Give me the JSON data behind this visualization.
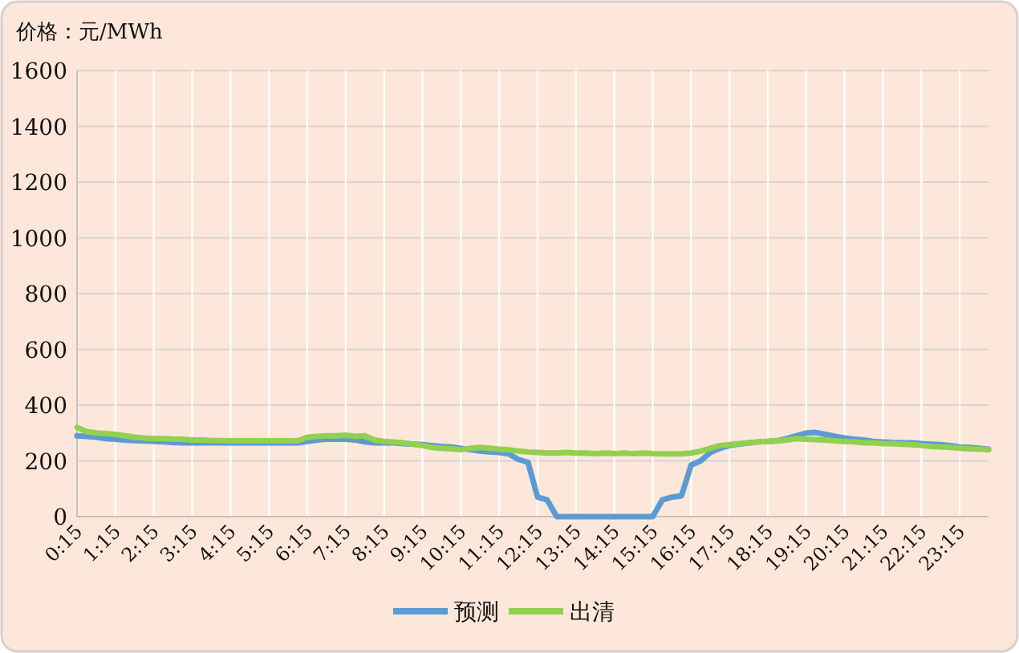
{
  "chart_data": {
    "type": "line",
    "ylabel": "价格：元/MWh",
    "categories": [
      "0:15",
      null,
      null,
      null,
      "1:15",
      null,
      null,
      null,
      "2:15",
      null,
      null,
      null,
      "3:15",
      null,
      null,
      null,
      "4:15",
      null,
      null,
      null,
      "5:15",
      null,
      null,
      null,
      "6:15",
      null,
      null,
      null,
      "7:15",
      null,
      null,
      null,
      "8:15",
      null,
      null,
      null,
      "9:15",
      null,
      null,
      null,
      "10:15",
      null,
      null,
      null,
      "11:15",
      null,
      null,
      null,
      "12:15",
      null,
      null,
      null,
      "13:15",
      null,
      null,
      null,
      "14:15",
      null,
      null,
      null,
      "15:15",
      null,
      null,
      null,
      "16:15",
      null,
      null,
      null,
      "17:15",
      null,
      null,
      null,
      "18:15",
      null,
      null,
      null,
      "19:15",
      null,
      null,
      null,
      "20:15",
      null,
      null,
      null,
      "21:15",
      null,
      null,
      null,
      "22:15",
      null,
      null,
      null,
      "23:15",
      null,
      null,
      null
    ],
    "series": [
      {
        "name": "预测",
        "color": "#5b9bd5",
        "values": [
          290,
          288,
          285,
          280,
          278,
          275,
          273,
          272,
          270,
          268,
          266,
          265,
          265,
          265,
          265,
          265,
          265,
          265,
          265,
          265,
          265,
          265,
          265,
          265,
          270,
          275,
          278,
          278,
          278,
          275,
          268,
          265,
          265,
          265,
          262,
          260,
          258,
          255,
          252,
          250,
          245,
          240,
          235,
          232,
          230,
          225,
          205,
          195,
          70,
          60,
          0,
          0,
          0,
          0,
          0,
          0,
          0,
          0,
          0,
          0,
          0,
          60,
          70,
          75,
          185,
          200,
          230,
          245,
          255,
          260,
          265,
          268,
          270,
          272,
          280,
          290,
          300,
          302,
          295,
          288,
          282,
          278,
          275,
          270,
          268,
          266,
          265,
          265,
          262,
          260,
          258,
          255,
          250,
          248,
          245,
          242
        ]
      },
      {
        "name": "出清",
        "color": "#92d050",
        "values": [
          320,
          305,
          300,
          298,
          295,
          290,
          285,
          282,
          280,
          280,
          278,
          278,
          275,
          275,
          273,
          273,
          272,
          272,
          272,
          272,
          272,
          272,
          272,
          272,
          285,
          288,
          290,
          290,
          292,
          288,
          290,
          275,
          270,
          268,
          265,
          260,
          255,
          248,
          245,
          243,
          240,
          245,
          248,
          245,
          242,
          240,
          235,
          232,
          230,
          228,
          228,
          230,
          228,
          228,
          226,
          228,
          226,
          228,
          226,
          228,
          226,
          225,
          225,
          225,
          228,
          235,
          245,
          255,
          258,
          262,
          265,
          268,
          270,
          272,
          275,
          280,
          278,
          276,
          275,
          272,
          270,
          268,
          265,
          265,
          262,
          262,
          260,
          258,
          255,
          252,
          250,
          248,
          245,
          243,
          242,
          240
        ]
      }
    ],
    "ylim": [
      0,
      1600
    ],
    "yticks": [
      0,
      200,
      400,
      600,
      800,
      1000,
      1200,
      1400,
      1600
    ],
    "grid": true,
    "legend": "bottom",
    "line_style": "solid",
    "marker": "none"
  }
}
